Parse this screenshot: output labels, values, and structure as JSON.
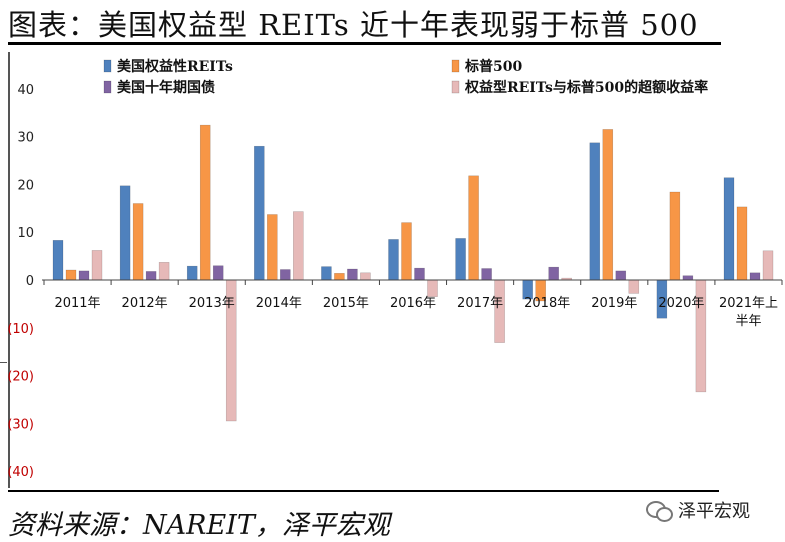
{
  "title": "图表：美国权益型 REITs 近十年表现弱于标普 500",
  "source": "资料来源：NAREIT，泽平宏观",
  "watermark": {
    "text": "泽平宏观",
    "icon": "wechat-icon"
  },
  "chart_data": {
    "type": "bar",
    "categories": [
      "2011年",
      "2012年",
      "2013年",
      "2014年",
      "2015年",
      "2016年",
      "2017年",
      "2018年",
      "2019年",
      "2020年",
      "2021年上半年"
    ],
    "category_lines": [
      [
        "2011年"
      ],
      [
        "2012年"
      ],
      [
        "2013年"
      ],
      [
        "2014年"
      ],
      [
        "2015年"
      ],
      [
        "2016年"
      ],
      [
        "2017年"
      ],
      [
        "2018年"
      ],
      [
        "2019年"
      ],
      [
        "2020年"
      ],
      [
        "2021年上",
        "半年"
      ]
    ],
    "ylim": [
      -40,
      40
    ],
    "yticks": [
      {
        "value": 40,
        "label": "40",
        "negative": false
      },
      {
        "value": 30,
        "label": "30",
        "negative": false
      },
      {
        "value": 20,
        "label": "20",
        "negative": false
      },
      {
        "value": 10,
        "label": "10",
        "negative": false
      },
      {
        "value": 0,
        "label": "0",
        "negative": false
      },
      {
        "value": -10,
        "label": "(10)",
        "negative": true
      },
      {
        "value": -20,
        "label": "(20)",
        "negative": true
      },
      {
        "value": -30,
        "label": "(30)",
        "negative": true
      },
      {
        "value": -40,
        "label": "(40)",
        "negative": true
      }
    ],
    "grid": false,
    "legend_position": "top",
    "series": [
      {
        "name": "美国权益性REITs",
        "color": "#4F81BD",
        "values": [
          8.3,
          19.7,
          2.9,
          28.0,
          2.8,
          8.5,
          8.7,
          -4.0,
          28.7,
          -8.0,
          21.4
        ]
      },
      {
        "name": "标普500",
        "color": "#F79646",
        "values": [
          2.1,
          16.0,
          32.4,
          13.7,
          1.4,
          12.0,
          21.8,
          -4.4,
          31.5,
          18.4,
          15.3
        ]
      },
      {
        "name": "美国十年期国债",
        "color": "#8064A2",
        "values": [
          1.9,
          1.8,
          3.0,
          2.2,
          2.3,
          2.5,
          2.4,
          2.7,
          1.9,
          0.9,
          1.5
        ]
      },
      {
        "name": "权益型REITs与标普500的超额收益率",
        "color": "#E6B9B8",
        "values": [
          6.2,
          3.7,
          -29.5,
          14.3,
          1.5,
          -3.5,
          -13.1,
          0.4,
          -2.8,
          -23.4,
          6.1
        ]
      }
    ]
  }
}
